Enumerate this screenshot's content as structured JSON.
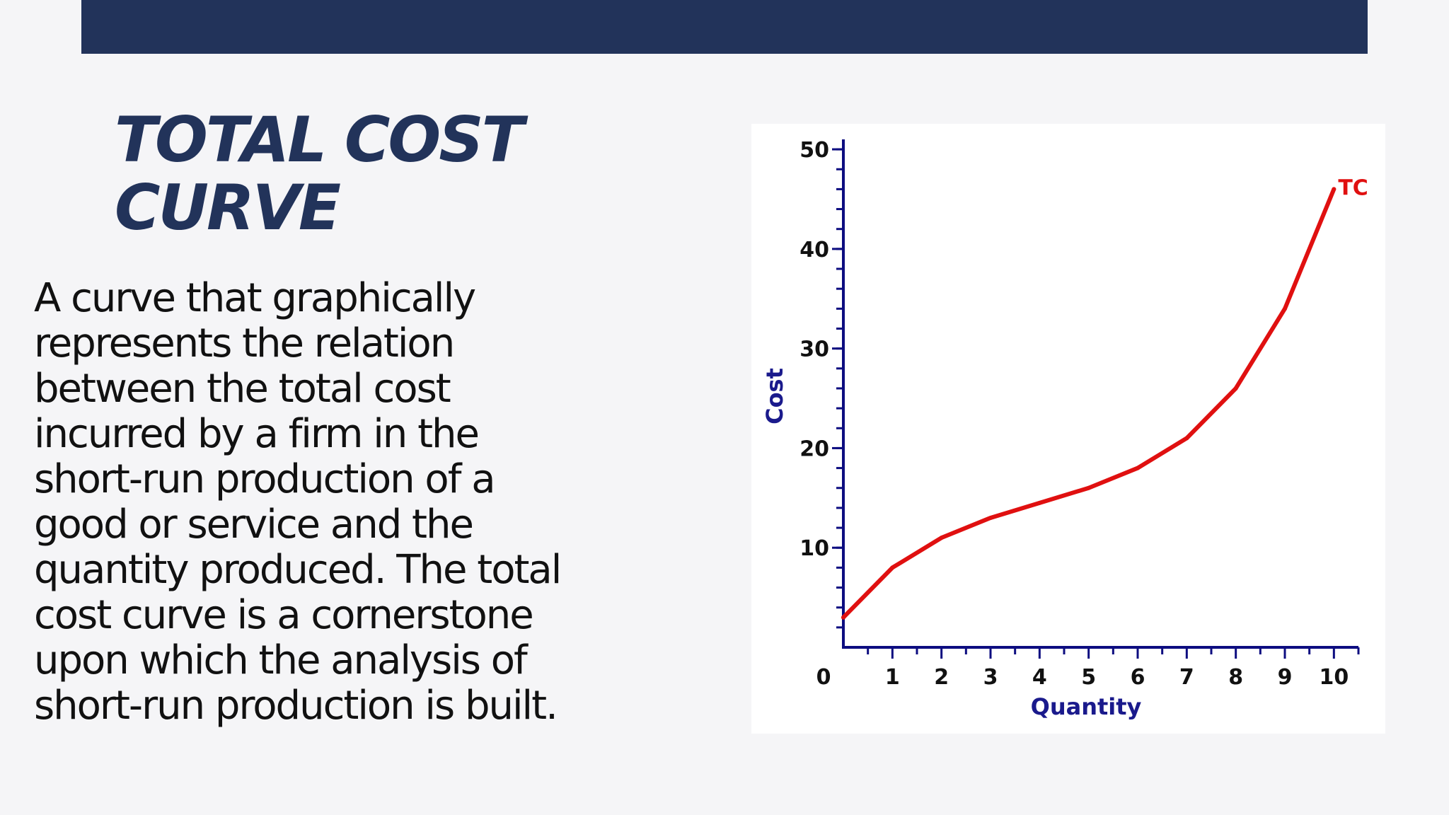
{
  "slide": {
    "title_lines": [
      "TOTAL COST",
      "CURVE"
    ],
    "body_lines": [
      "A curve that graphically",
      "represents the relation",
      "between the total cost",
      "incurred by a firm in the",
      "short-run production of a",
      "good or service and the",
      "quantity produced. The total",
      "cost curve is a cornerstone",
      "upon which the analysis of",
      "short-run production is built."
    ]
  },
  "chart_data": {
    "type": "line",
    "title": "",
    "xlabel": "Quantity",
    "ylabel": "Cost",
    "xlim": [
      0,
      10.5
    ],
    "ylim": [
      0,
      51
    ],
    "x_ticks": [
      1,
      2,
      3,
      4,
      5,
      6,
      7,
      8,
      9,
      10
    ],
    "y_ticks": [
      10,
      20,
      30,
      40,
      50
    ],
    "origin_label": "0",
    "grid": false,
    "series": [
      {
        "name": "TC",
        "color": "#e01010",
        "x": [
          0,
          1,
          2,
          3,
          4,
          5,
          6,
          7,
          8,
          9,
          10
        ],
        "y": [
          3,
          8,
          11,
          13,
          14.5,
          16,
          18,
          21,
          26,
          34,
          46
        ]
      }
    ],
    "axis_color": "#0d0d80"
  }
}
